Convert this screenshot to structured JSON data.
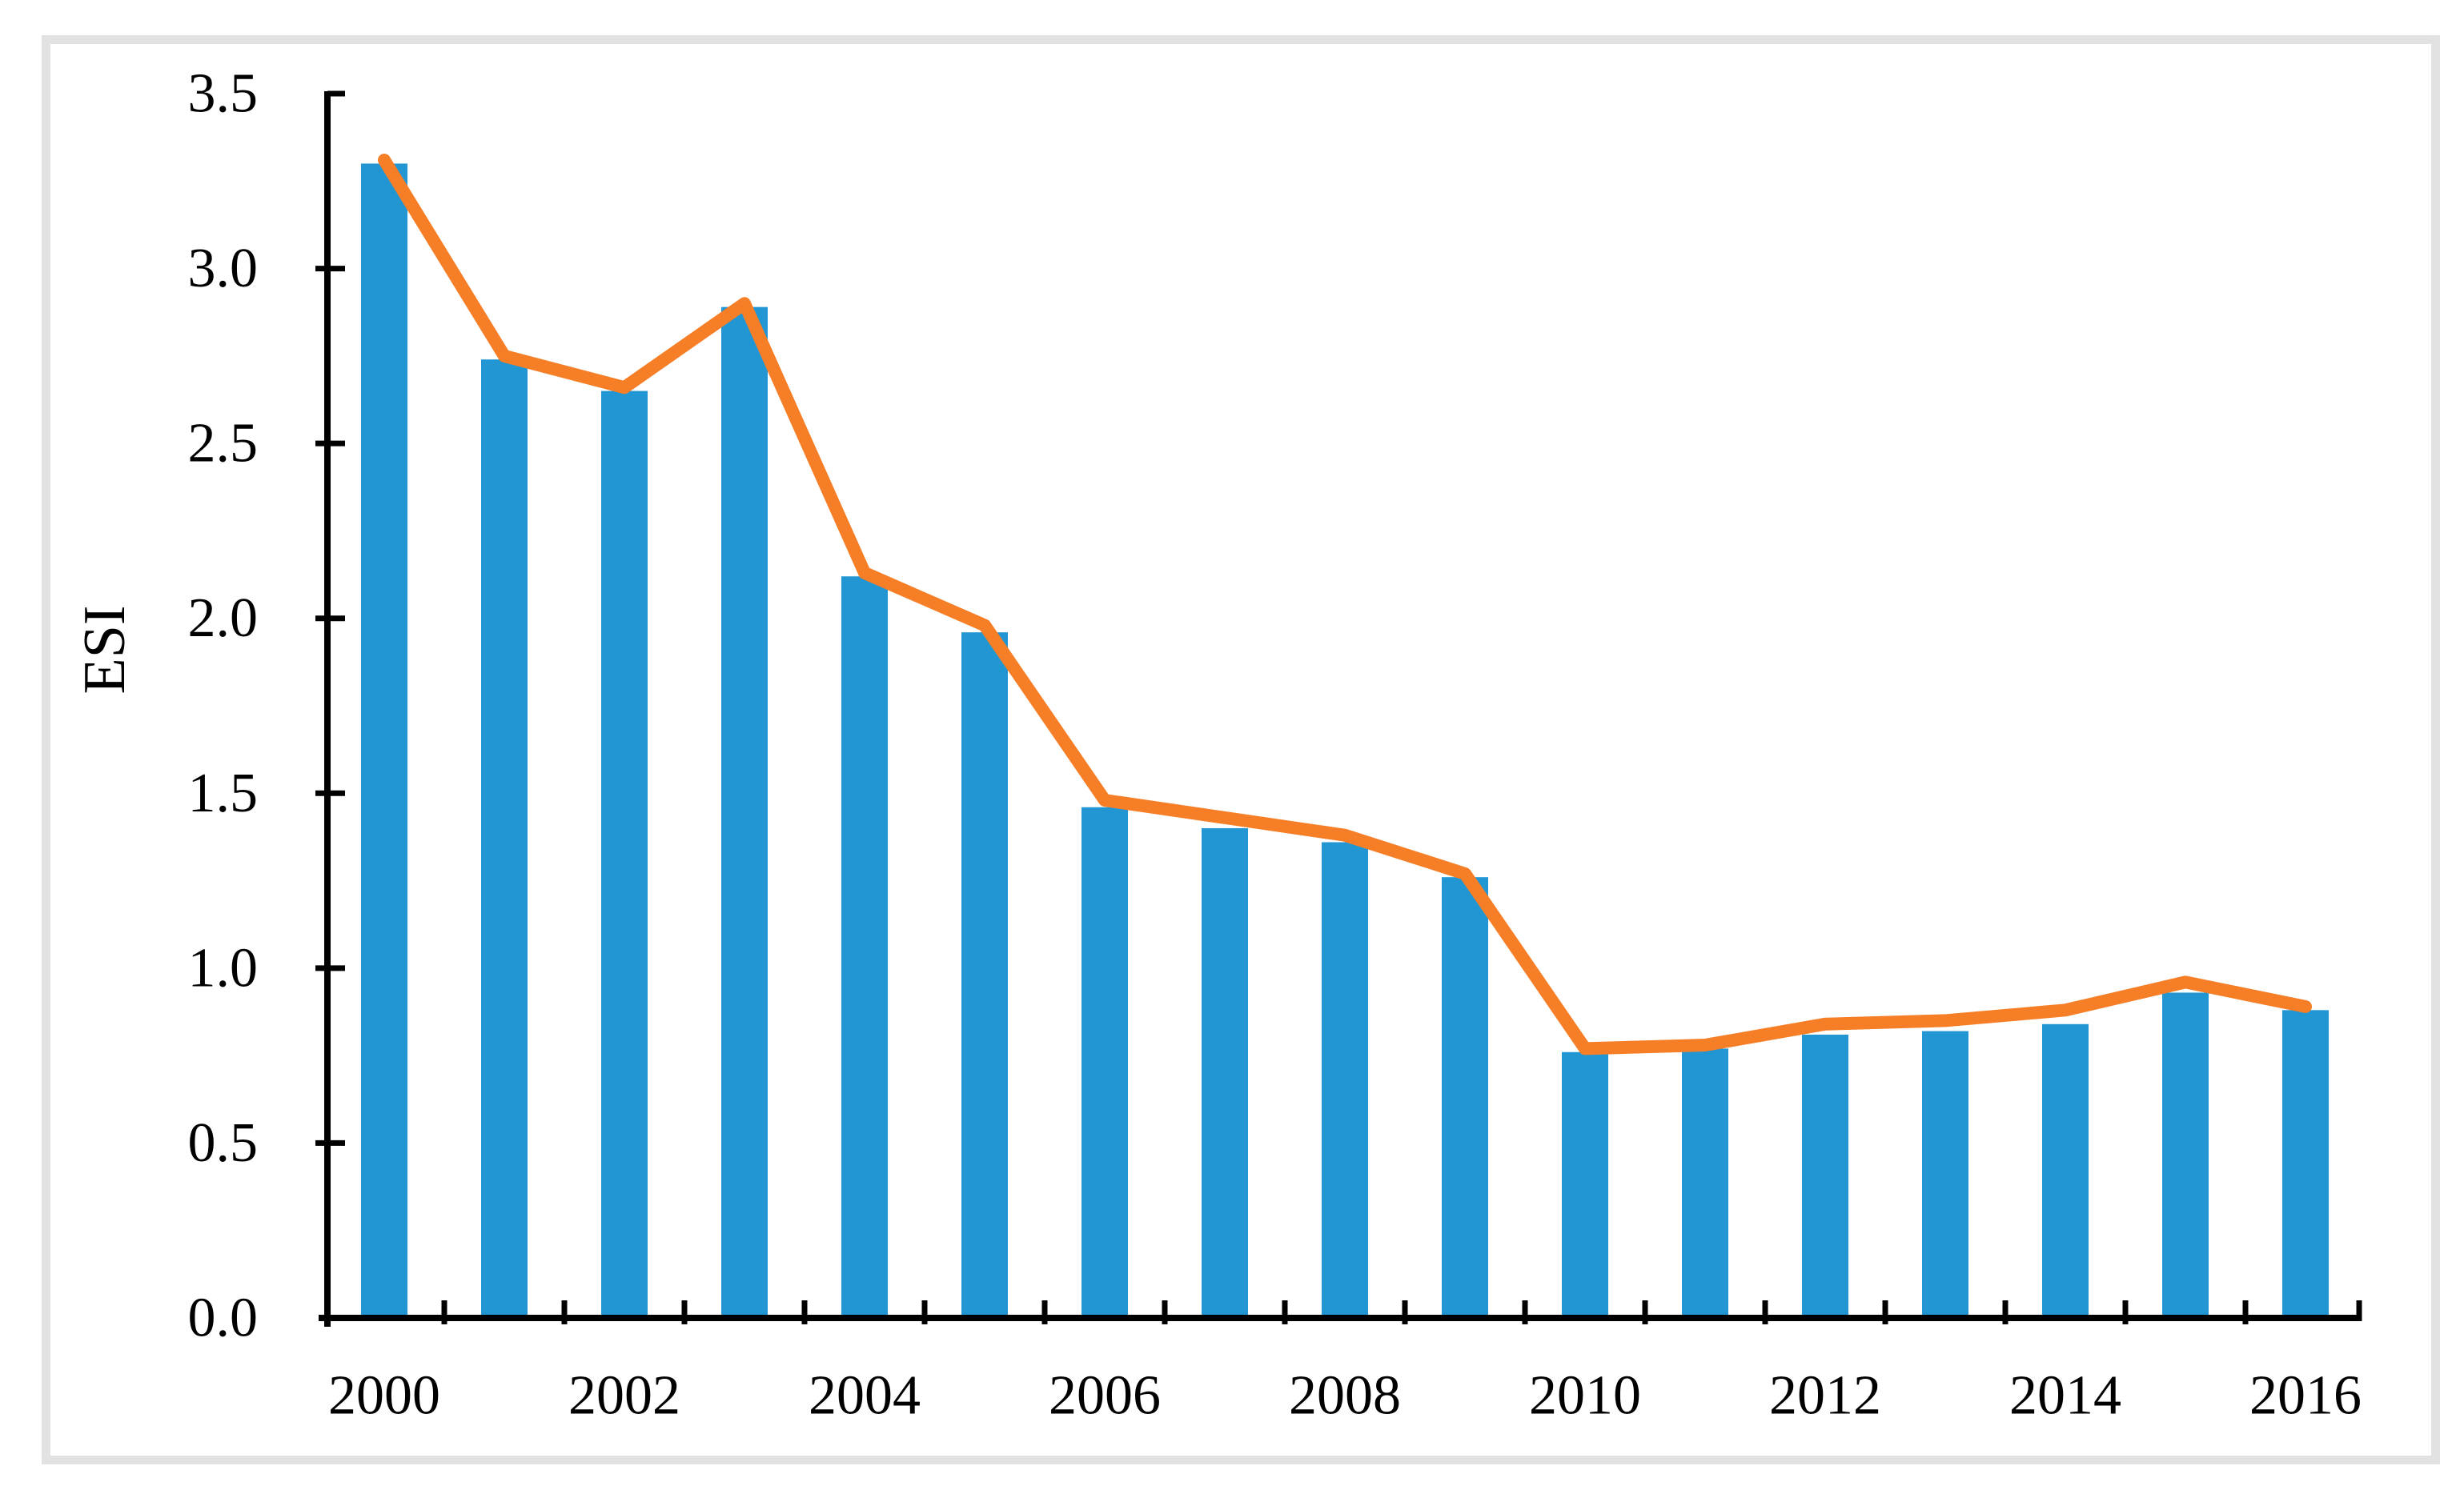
{
  "figure": {
    "background_color": "#FFFFFF",
    "border_color": "#E2E2E2"
  },
  "chart_data": {
    "type": "combo-bar-line",
    "title": "",
    "xlabel": "",
    "ylabel": "ESI",
    "categories": [
      "2000",
      "2001",
      "2002",
      "2003",
      "2004",
      "2005",
      "2006",
      "2007",
      "2008",
      "2009",
      "2010",
      "2011",
      "2012",
      "2013",
      "2014",
      "2015",
      "2016"
    ],
    "series": [
      {
        "name": "ESI (bars)",
        "type": "bar",
        "color": "#2196D3",
        "values": [
          3.3,
          2.74,
          2.65,
          2.89,
          2.12,
          1.96,
          1.46,
          1.4,
          1.36,
          1.26,
          0.76,
          0.77,
          0.81,
          0.82,
          0.84,
          0.93,
          0.88
        ]
      },
      {
        "name": "ESI (trend line)",
        "type": "line",
        "color": "#F57E26",
        "values": [
          3.31,
          2.75,
          2.66,
          2.9,
          2.13,
          1.98,
          1.48,
          1.43,
          1.38,
          1.27,
          0.77,
          0.78,
          0.84,
          0.85,
          0.88,
          0.96,
          0.89
        ]
      }
    ],
    "ylim": [
      0,
      3.5
    ],
    "y_tick_step": 0.5,
    "y_tick_labels": [
      "0.0",
      "0.5",
      "1.0",
      "1.5",
      "2.0",
      "2.5",
      "3.0",
      "3.5"
    ],
    "x_tick_labels": [
      "2000",
      "2002",
      "2004",
      "2006",
      "2008",
      "2010",
      "2012",
      "2014",
      "2016"
    ],
    "x_label_every": 2,
    "grid": false,
    "legend": false,
    "axis_color": "#000000",
    "tick_label_color": "#000000"
  }
}
